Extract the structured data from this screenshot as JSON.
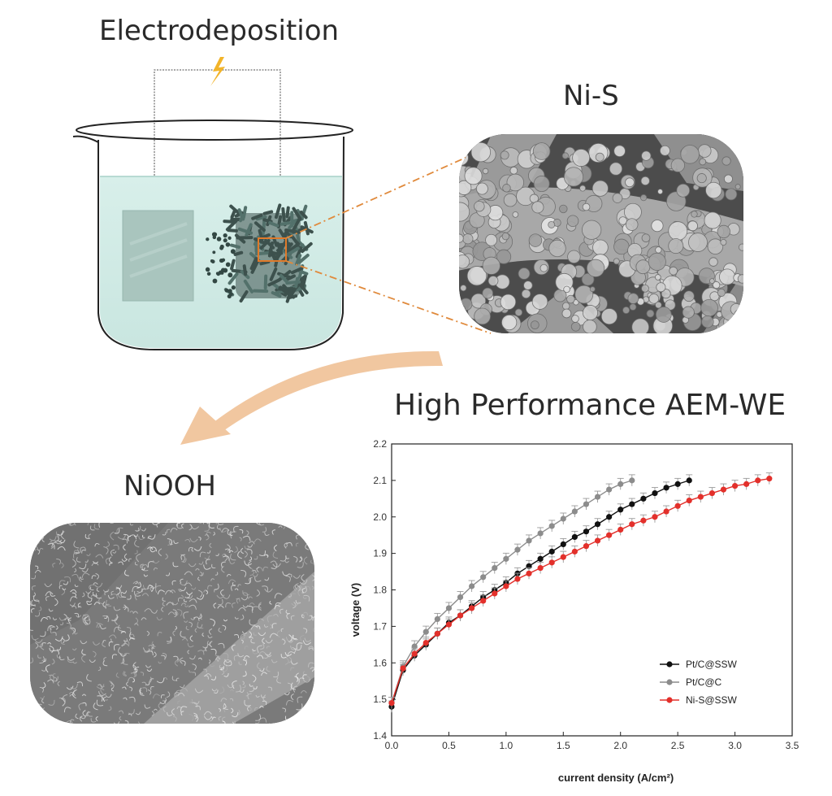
{
  "figure": {
    "title_electrodeposition": "Electrodeposition",
    "label_nis": "Ni-S",
    "label_niooh": "NiOOH",
    "title_performance": "High Performance AEM-WE",
    "accent_color": "#e8a870",
    "solution_color": "#d6ece8",
    "electrode_color": "#3e524e"
  },
  "chart_data": {
    "type": "line",
    "xlabel": "current density (A/cm²)",
    "ylabel": "voltage (V)",
    "xlim": [
      0.0,
      3.5
    ],
    "ylim": [
      1.4,
      2.2
    ],
    "xticks": [
      "0.0",
      "0.5",
      "1.0",
      "1.5",
      "2.0",
      "2.5",
      "3.0",
      "3.5"
    ],
    "yticks": [
      "1.4",
      "1.5",
      "1.6",
      "1.7",
      "1.8",
      "1.9",
      "2.0",
      "2.1",
      "2.2"
    ],
    "legend_position": "bottom-right",
    "series": [
      {
        "name": "Pt/C@SSW",
        "color": "#111111",
        "x": [
          0.0,
          0.1,
          0.2,
          0.3,
          0.4,
          0.5,
          0.6,
          0.7,
          0.8,
          0.9,
          1.0,
          1.1,
          1.2,
          1.3,
          1.4,
          1.5,
          1.6,
          1.7,
          1.8,
          1.9,
          2.0,
          2.1,
          2.2,
          2.3,
          2.4,
          2.5,
          2.6
        ],
        "y": [
          1.48,
          1.58,
          1.62,
          1.65,
          1.68,
          1.71,
          1.73,
          1.755,
          1.78,
          1.8,
          1.82,
          1.845,
          1.865,
          1.885,
          1.905,
          1.925,
          1.945,
          1.96,
          1.98,
          2.0,
          2.02,
          2.035,
          2.05,
          2.065,
          2.08,
          2.09,
          2.1
        ]
      },
      {
        "name": "Pt/C@C",
        "color": "#8c8c8c",
        "x": [
          0.0,
          0.1,
          0.2,
          0.3,
          0.4,
          0.5,
          0.6,
          0.7,
          0.8,
          0.9,
          1.0,
          1.1,
          1.2,
          1.3,
          1.4,
          1.5,
          1.6,
          1.7,
          1.8,
          1.9,
          2.0,
          2.1
        ],
        "y": [
          1.49,
          1.59,
          1.645,
          1.685,
          1.72,
          1.75,
          1.78,
          1.81,
          1.835,
          1.86,
          1.885,
          1.91,
          1.935,
          1.955,
          1.975,
          1.995,
          2.015,
          2.035,
          2.055,
          2.075,
          2.09,
          2.1
        ]
      },
      {
        "name": "Ni-S@SSW",
        "color": "#e3302b",
        "x": [
          0.0,
          0.1,
          0.2,
          0.3,
          0.4,
          0.5,
          0.6,
          0.7,
          0.8,
          0.9,
          1.0,
          1.1,
          1.2,
          1.3,
          1.4,
          1.5,
          1.6,
          1.7,
          1.8,
          1.9,
          2.0,
          2.1,
          2.2,
          2.3,
          2.4,
          2.5,
          2.6,
          2.7,
          2.8,
          2.9,
          3.0,
          3.1,
          3.2,
          3.3
        ],
        "y": [
          1.49,
          1.585,
          1.625,
          1.655,
          1.68,
          1.705,
          1.73,
          1.75,
          1.77,
          1.79,
          1.81,
          1.83,
          1.845,
          1.86,
          1.875,
          1.89,
          1.905,
          1.92,
          1.935,
          1.95,
          1.965,
          1.98,
          1.99,
          2.0,
          2.015,
          2.03,
          2.045,
          2.055,
          2.065,
          2.075,
          2.085,
          2.09,
          2.1,
          2.105
        ]
      }
    ]
  }
}
